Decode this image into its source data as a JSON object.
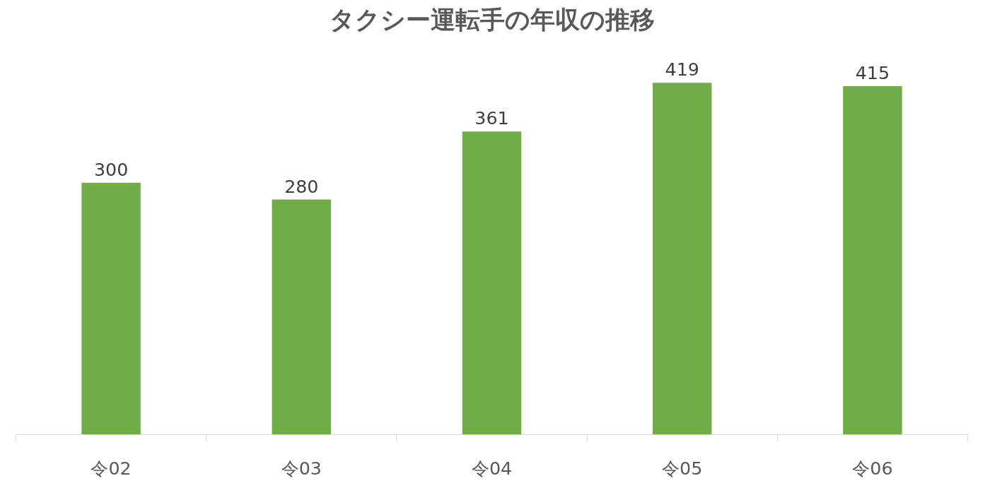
{
  "chart_data": {
    "type": "bar",
    "title": "タクシー運転手の年収の推移",
    "categories": [
      "令02",
      "令03",
      "令04",
      "令05",
      "令06"
    ],
    "values": [
      300,
      280,
      361,
      419,
      415
    ],
    "color": "#70ad47",
    "data_labels": true,
    "grid": false,
    "tick_labels": "x"
  }
}
